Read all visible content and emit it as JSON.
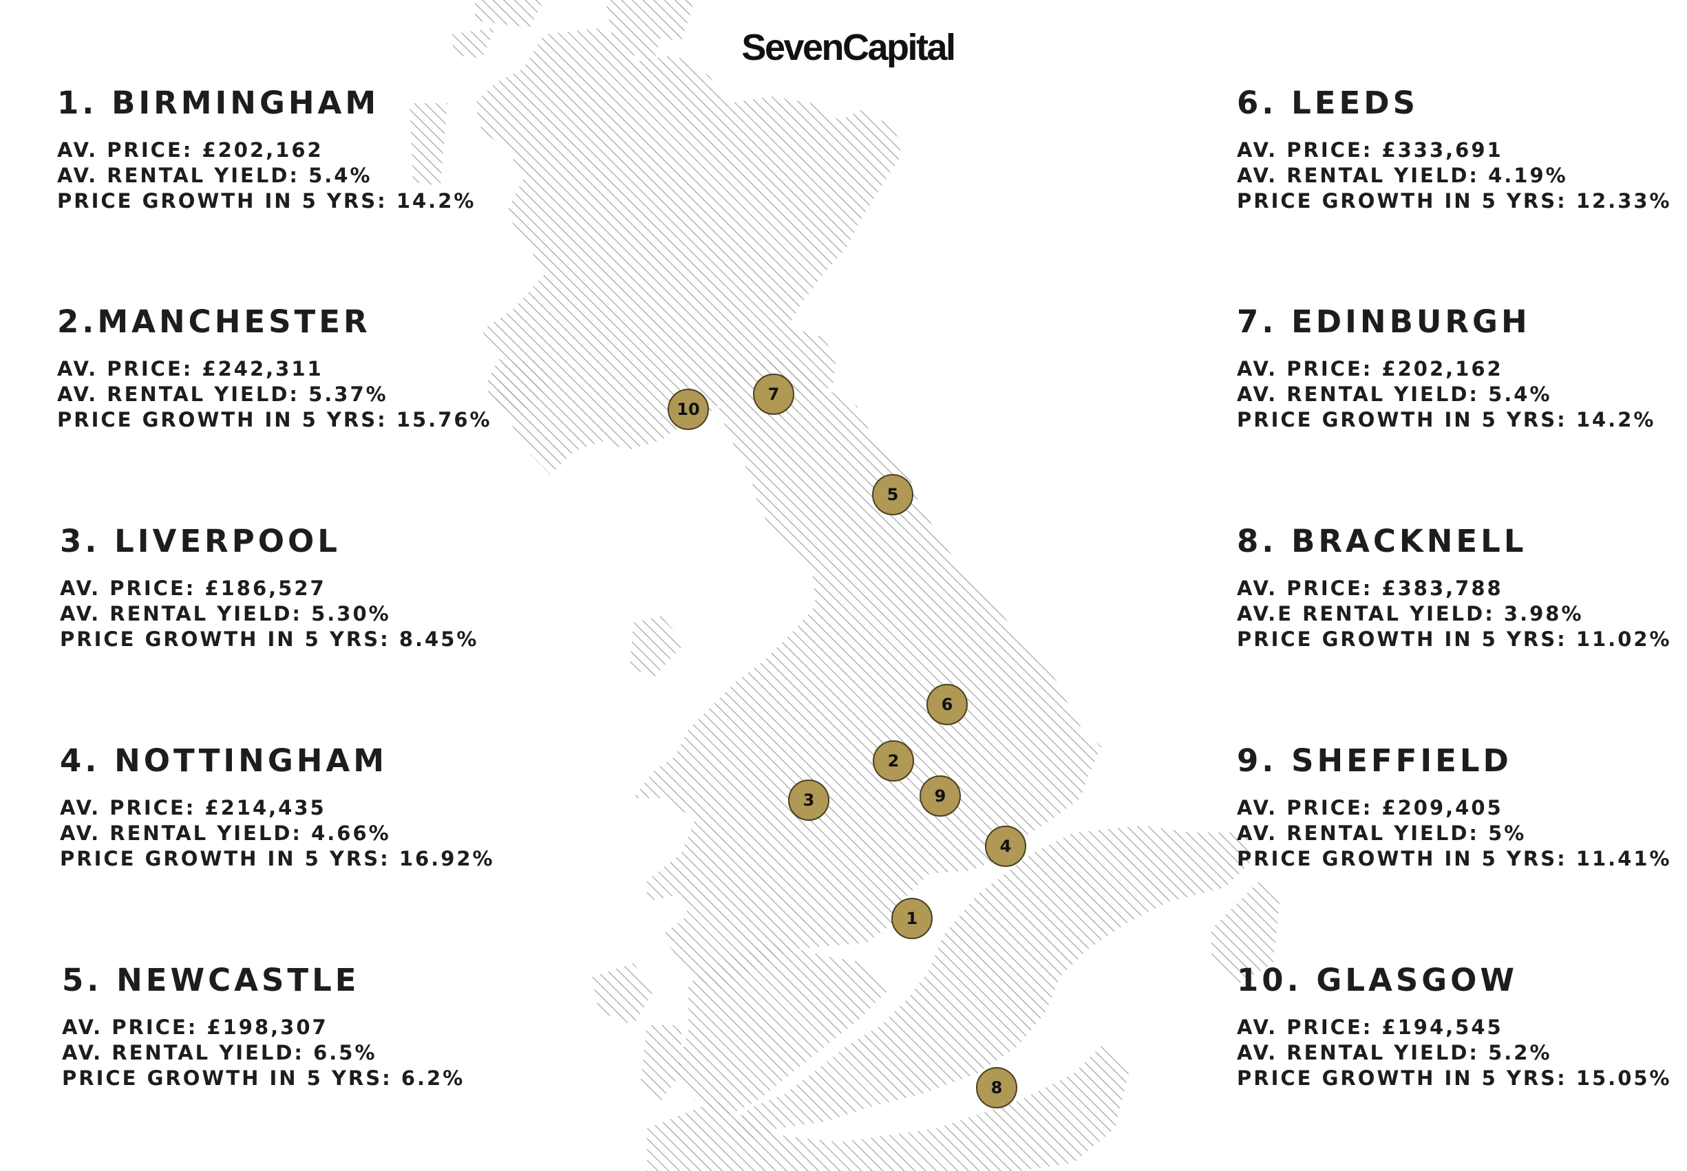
{
  "brand": {
    "logo_text": "SevenCapital"
  },
  "colors": {
    "marker_fill": "#b09855",
    "marker_stroke": "#4a3f20",
    "hatch": "#9a9a9a"
  },
  "map": {
    "type": "hatched-outline-map",
    "region": "Great Britain",
    "markers": [
      {
        "label": "1",
        "city": "Birmingham"
      },
      {
        "label": "2",
        "city": "Manchester"
      },
      {
        "label": "3",
        "city": "Liverpool"
      },
      {
        "label": "4",
        "city": "Nottingham"
      },
      {
        "label": "5",
        "city": "Newcastle"
      },
      {
        "label": "6",
        "city": "Leeds"
      },
      {
        "label": "7",
        "city": "Edinburgh"
      },
      {
        "label": "8",
        "city": "Bracknell"
      },
      {
        "label": "9",
        "city": "Sheffield"
      },
      {
        "label": "10",
        "city": "Glasgow"
      }
    ]
  },
  "cities": [
    {
      "name": "1. BIRMINGHAM",
      "price": "AV. PRICE: £202,162",
      "yield": "AV. RENTAL YIELD: 5.4%",
      "growth": "PRICE GROWTH IN 5 YRS: 14.2%"
    },
    {
      "name": "2.MANCHESTER",
      "price": "AV. PRICE: £242,311",
      "yield": "AV. RENTAL YIELD: 5.37%",
      "growth": "PRICE GROWTH IN 5 YRS: 15.76%"
    },
    {
      "name": "3. LIVERPOOL",
      "price": "AV. PRICE: £186,527",
      "yield": "AV. RENTAL YIELD: 5.30%",
      "growth": "PRICE GROWTH IN 5 YRS: 8.45%"
    },
    {
      "name": "4. NOTTINGHAM",
      "price": "AV. PRICE: £214,435",
      "yield": "AV. RENTAL YIELD: 4.66%",
      "growth": "PRICE GROWTH IN 5 YRS: 16.92%"
    },
    {
      "name": "5. NEWCASTLE",
      "price": "AV. PRICE: £198,307",
      "yield": "AV. RENTAL YIELD: 6.5%",
      "growth": "PRICE GROWTH IN 5 YRS: 6.2%"
    },
    {
      "name": "6. LEEDS",
      "price": "AV. PRICE: £333,691",
      "yield": "AV. RENTAL YIELD: 4.19%",
      "growth": "PRICE GROWTH IN 5 YRS: 12.33%"
    },
    {
      "name": "7. EDINBURGH",
      "price": "AV. PRICE: £202,162",
      "yield": "AV. RENTAL YIELD: 5.4%",
      "growth": "PRICE GROWTH IN 5 YRS: 14.2%"
    },
    {
      "name": "8. BRACKNELL",
      "price": "AV. PRICE: £383,788",
      "yield": "AV.E RENTAL YIELD: 3.98%",
      "growth": "PRICE GROWTH IN 5 YRS: 11.02%"
    },
    {
      "name": "9. SHEFFIELD",
      "price": "AV. PRICE: £209,405",
      "yield": "AV. RENTAL YIELD: 5%",
      "growth": "PRICE GROWTH IN 5 YRS: 11.41%"
    },
    {
      "name": "10. GLASGOW",
      "price": "AV. PRICE: £194,545",
      "yield": "AV. RENTAL YIELD: 5.2%",
      "growth": "PRICE GROWTH IN 5 YRS: 15.05%"
    }
  ]
}
